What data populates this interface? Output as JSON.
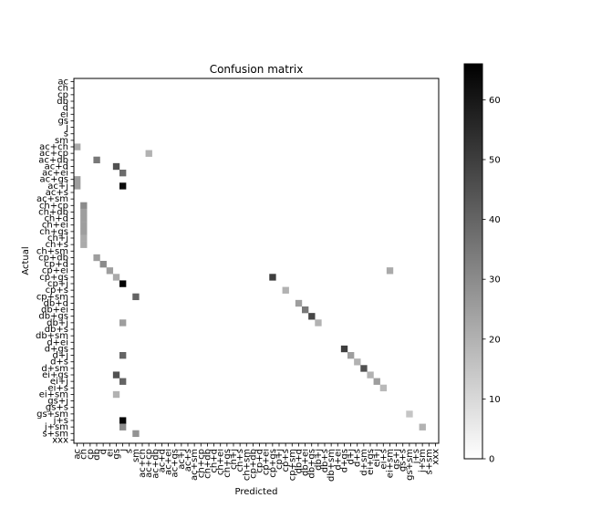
{
  "chart_data": {
    "type": "heatmap",
    "title": "Confusion matrix",
    "xlabel": "Predicted",
    "ylabel": "Actual",
    "labels": [
      "ac",
      "ch",
      "cp",
      "db",
      "d",
      "ei",
      "gs",
      "j",
      "s",
      "sm",
      "ac+ch",
      "ac+cp",
      "ac+db",
      "ac+d",
      "ac+ei",
      "ac+gs",
      "ac+j",
      "ac+s",
      "ac+sm",
      "ch+cp",
      "ch+db",
      "ch+d",
      "ch+ei",
      "ch+gs",
      "ch+j",
      "ch+s",
      "ch+sm",
      "cp+db",
      "cp+d",
      "cp+ei",
      "cp+gs",
      "cp+j",
      "cp+s",
      "cp+sm",
      "db+d",
      "db+ei",
      "db+gs",
      "db+j",
      "db+s",
      "db+sm",
      "d+ei",
      "d+gs",
      "d+j",
      "d+s",
      "d+sm",
      "ei+gs",
      "ei+j",
      "ei+s",
      "ei+sm",
      "gs+j",
      "gs+s",
      "gs+sm",
      "j+s",
      "j+sm",
      "s+sm",
      "xxx"
    ],
    "colorbar": {
      "vmin": 0,
      "vmax": 66,
      "ticks": [
        0,
        10,
        20,
        30,
        40,
        50,
        60
      ],
      "colormap": "gray_r"
    },
    "notable_cells": [
      {
        "actual": "ac+ch",
        "predicted": "ac",
        "value": 22
      },
      {
        "actual": "ac+cp",
        "predicted": "ac+cp",
        "value": 20
      },
      {
        "actual": "ac+db",
        "predicted": "db",
        "value": 35
      },
      {
        "actual": "ac+d",
        "predicted": "gs",
        "value": 45
      },
      {
        "actual": "ac+ei",
        "predicted": "j",
        "value": 38
      },
      {
        "actual": "ac+j",
        "predicted": "j",
        "value": 63
      },
      {
        "actual": "ac+gs",
        "predicted": "ac",
        "value": 25
      },
      {
        "actual": "ac+j",
        "predicted": "ac",
        "value": 25
      },
      {
        "actual": "ch+cp",
        "predicted": "ch",
        "value": 30
      },
      {
        "actual": "ch+db",
        "predicted": "ch",
        "value": 25
      },
      {
        "actual": "ch+d",
        "predicted": "ch",
        "value": 25
      },
      {
        "actual": "ch+ei",
        "predicted": "ch",
        "value": 25
      },
      {
        "actual": "ch+gs",
        "predicted": "ch",
        "value": 25
      },
      {
        "actual": "ch+j",
        "predicted": "ch",
        "value": 22
      },
      {
        "actual": "ch+s",
        "predicted": "ch",
        "value": 22
      },
      {
        "actual": "cp+db",
        "predicted": "db",
        "value": 25
      },
      {
        "actual": "cp+d",
        "predicted": "d",
        "value": 30
      },
      {
        "actual": "cp+ei",
        "predicted": "ei",
        "value": 25
      },
      {
        "actual": "cp+gs",
        "predicted": "gs",
        "value": 22
      },
      {
        "actual": "cp+gs",
        "predicted": "cp+gs",
        "value": 50
      },
      {
        "actual": "cp+j",
        "predicted": "j",
        "value": 65
      },
      {
        "actual": "cp+sm",
        "predicted": "sm",
        "value": 40
      },
      {
        "actual": "cp+s",
        "predicted": "cp+s",
        "value": 20
      },
      {
        "actual": "db+d",
        "predicted": "db+d",
        "value": 25
      },
      {
        "actual": "db+ei",
        "predicted": "db+ei",
        "value": 35
      },
      {
        "actual": "db+gs",
        "predicted": "db+gs",
        "value": 48
      },
      {
        "actual": "db+j",
        "predicted": "j",
        "value": 25
      },
      {
        "actual": "db+j",
        "predicted": "db+j",
        "value": 20
      },
      {
        "actual": "d+gs",
        "predicted": "d+gs",
        "value": 50
      },
      {
        "actual": "d+j",
        "predicted": "j",
        "value": 40
      },
      {
        "actual": "d+j",
        "predicted": "d+j",
        "value": 25
      },
      {
        "actual": "d+s",
        "predicted": "d+s",
        "value": 20
      },
      {
        "actual": "d+sm",
        "predicted": "d+sm",
        "value": 45
      },
      {
        "actual": "ei+gs",
        "predicted": "gs",
        "value": 45
      },
      {
        "actual": "ei+gs",
        "predicted": "ei+gs",
        "value": 20
      },
      {
        "actual": "ei+j",
        "predicted": "j",
        "value": 40
      },
      {
        "actual": "ei+j",
        "predicted": "ei+j",
        "value": 25
      },
      {
        "actual": "ei+s",
        "predicted": "ei+s",
        "value": 18
      },
      {
        "actual": "ei+sm",
        "predicted": "gs",
        "value": 20
      },
      {
        "actual": "cp+ei",
        "predicted": "ei+sm",
        "value": 22
      },
      {
        "actual": "j+s",
        "predicted": "j",
        "value": 65
      },
      {
        "actual": "j+sm",
        "predicted": "j",
        "value": 30
      },
      {
        "actual": "j+sm",
        "predicted": "j+sm",
        "value": 20
      },
      {
        "actual": "gs+sm",
        "predicted": "gs+sm",
        "value": 15
      },
      {
        "actual": "s+sm",
        "predicted": "sm",
        "value": 28
      },
      {
        "actual": "xxx",
        "predicted": "xxx",
        "value": 0
      }
    ]
  }
}
